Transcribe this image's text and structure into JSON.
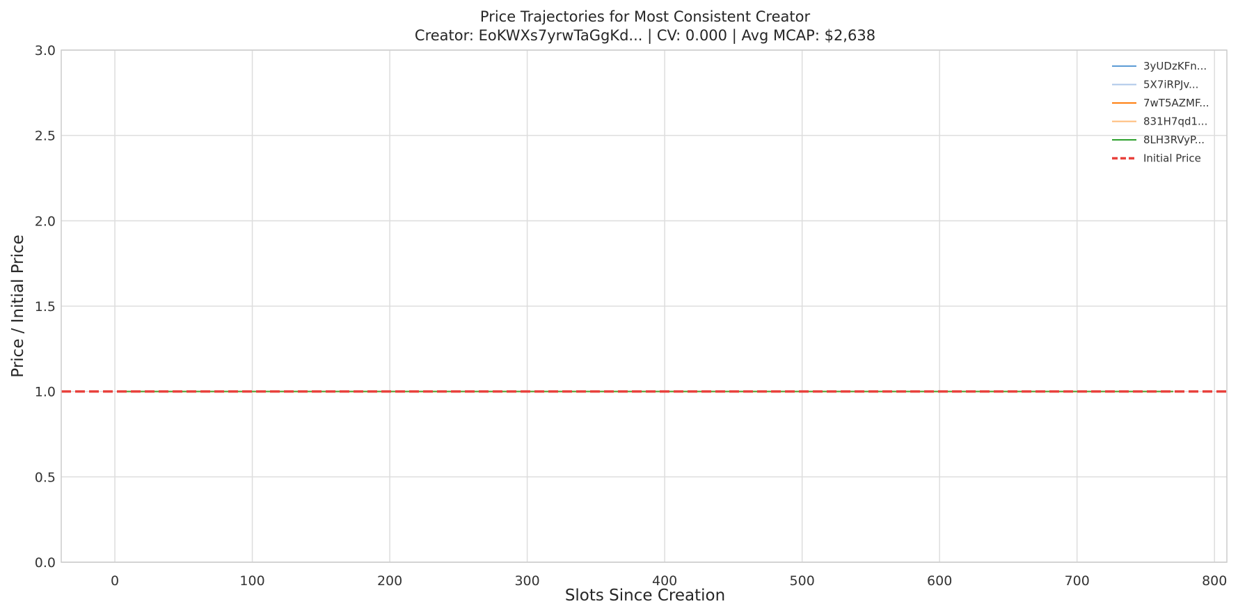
{
  "chart_data": {
    "type": "line",
    "title": "Price Trajectories for Most Consistent Creator",
    "subtitle": "Creator: EoKWXs7yrwTaGgKd... | CV: 0.000 | Avg MCAP: $2,638",
    "xlabel": "Slots Since Creation",
    "ylabel": "Price / Initial Price",
    "xlim": [
      -39,
      809
    ],
    "ylim": [
      0,
      3
    ],
    "x_ticks": [
      0,
      100,
      200,
      300,
      400,
      500,
      600,
      700,
      800
    ],
    "y_ticks": [
      0.0,
      0.5,
      1.0,
      1.5,
      2.0,
      2.5,
      3.0
    ],
    "x_tick_labels": [
      "0",
      "100",
      "200",
      "300",
      "400",
      "500",
      "600",
      "700",
      "800"
    ],
    "y_tick_labels": [
      "0.0",
      "0.5",
      "1.0",
      "1.5",
      "2.0",
      "2.5",
      "3.0"
    ],
    "grid": true,
    "legend_position": "top-right",
    "series": [
      {
        "name": "3yUDzKFn...",
        "color": "#5b9bd5",
        "x": [
          5,
          60
        ],
        "y": [
          1.0,
          1.0
        ]
      },
      {
        "name": "5X7iRPJv...",
        "color": "#aec7e8",
        "x": [
          5,
          770
        ],
        "y": [
          1.0,
          1.0
        ]
      },
      {
        "name": "7wT5AZMF...",
        "color": "#ff7f0e",
        "x": [
          5,
          770
        ],
        "y": [
          1.0,
          1.0
        ]
      },
      {
        "name": "831H7qd1...",
        "color": "#ffbb78",
        "x": [
          5,
          770
        ],
        "y": [
          1.0,
          1.0
        ]
      },
      {
        "name": "8LH3RVyP...",
        "color": "#2ca02c",
        "x": [
          5,
          770
        ],
        "y": [
          1.0,
          1.0
        ]
      }
    ],
    "reference_line": {
      "name": "Initial Price",
      "y": 1.0,
      "color": "#e8413c",
      "style": "dashed"
    }
  }
}
